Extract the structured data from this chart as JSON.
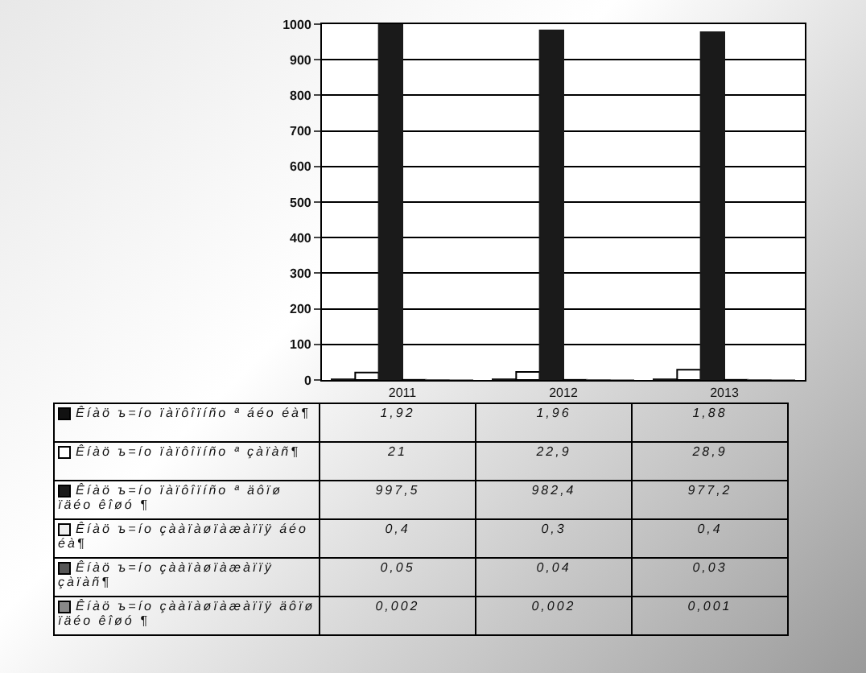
{
  "chart_data": {
    "type": "bar",
    "categories": [
      "2011",
      "2012",
      "2013"
    ],
    "series": [
      {
        "name": "Êíàö ъ=ío ïàïôîïíño ª áéo éà¶",
        "color": "#111111",
        "values": [
          1.92,
          1.96,
          1.88
        ],
        "value_labels": [
          "1,92",
          "1,96",
          "1,88"
        ]
      },
      {
        "name": "Êíàö ъ=ío ïàïôîïíño ª çàïàñ¶",
        "color": "#ffffff",
        "values": [
          21,
          22.9,
          28.9
        ],
        "value_labels": [
          "21",
          "22,9",
          "28,9"
        ]
      },
      {
        "name": "Êíàö ъ=ío ïàïôîïíño ª äôïø ïäéo êîøó ¶",
        "color": "#1a1a1a",
        "values": [
          997.5,
          982.4,
          977.2
        ],
        "value_labels": [
          "997,5",
          "982,4",
          "977,2"
        ]
      },
      {
        "name": "Êíàö ъ=ío çààïàøïàæàïïÿ áéo éà¶",
        "color": "#eeeeee",
        "values": [
          0.4,
          0.3,
          0.4
        ],
        "value_labels": [
          "0,4",
          "0,3",
          "0,4"
        ]
      },
      {
        "name": "Êíàö ъ=ío çààïàøïàæàïïÿ çàïàñ¶",
        "color": "#555555",
        "values": [
          0.05,
          0.04,
          0.03
        ],
        "value_labels": [
          "0,05",
          "0,04",
          "0,03"
        ]
      },
      {
        "name": "Êíàö ъ=ío çààïàøïàæàïïÿ äôïø ïäéo êîøó ¶",
        "color": "#888888",
        "values": [
          0.002,
          0.002,
          0.001
        ],
        "value_labels": [
          "0,002",
          "0,002",
          "0,001"
        ]
      }
    ],
    "ylim": [
      0,
      1000
    ],
    "yticks": [
      0,
      100,
      200,
      300,
      400,
      500,
      600,
      700,
      800,
      900,
      1000
    ],
    "grid": "y",
    "legend": "bottom"
  }
}
